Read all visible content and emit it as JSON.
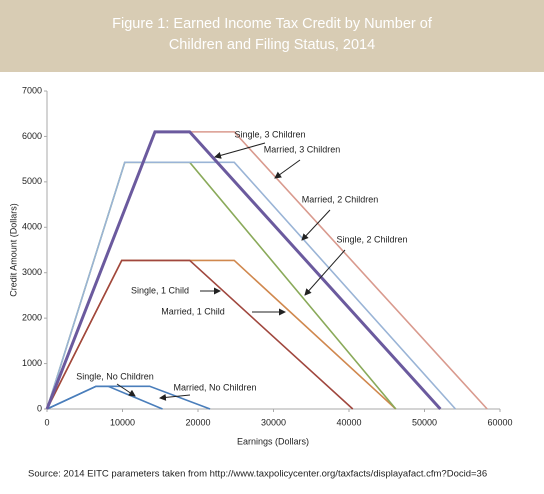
{
  "chart_data": {
    "type": "line",
    "title": "Figure 1: Earned Income Tax Credit by Number of Children and Filing Status, 2014",
    "xlabel": "Earnings (Dollars)",
    "ylabel": "Credit Amount (Dollars)",
    "source": "Source: 2014 EITC parameters taken from http://www.taxpolicycenter.org/taxfacts/displayafact.cfm?Docid=36",
    "xlim": [
      0,
      60000
    ],
    "xticks": [
      0,
      10000,
      20000,
      30000,
      40000,
      50000,
      60000
    ],
    "ylim": [
      0,
      7000
    ],
    "yticks": [
      0,
      1000,
      2000,
      3000,
      4000,
      5000,
      6000,
      7000
    ],
    "grid": false,
    "series": [
      {
        "name": "Single, 3 Children",
        "color": "#6b5a9e",
        "x": [
          0,
          14300,
          18900,
          52100
        ],
        "values": [
          0,
          6100,
          6100,
          0
        ]
      },
      {
        "name": "Married, 3 Children",
        "color": "#d99a8e",
        "x": [
          0,
          14300,
          24800,
          58300
        ],
        "values": [
          0,
          6100,
          6100,
          0
        ]
      },
      {
        "name": "Married, 2 Children",
        "color": "#9ab4d6",
        "x": [
          0,
          10300,
          24800,
          54100
        ],
        "values": [
          0,
          5430,
          5430,
          0
        ]
      },
      {
        "name": "Single, 2 Children",
        "color": "#8aaa5a",
        "x": [
          0,
          10300,
          18900,
          46200
        ],
        "values": [
          0,
          5430,
          5430,
          0
        ]
      },
      {
        "name": "Single, 1 Child",
        "color": "#a0473e",
        "x": [
          0,
          9900,
          18900,
          40500
        ],
        "values": [
          0,
          3270,
          3270,
          0
        ]
      },
      {
        "name": "Married, 1 Child",
        "color": "#d0884e",
        "x": [
          0,
          9900,
          24800,
          46200
        ],
        "values": [
          0,
          3270,
          3270,
          0
        ]
      },
      {
        "name": "Single, No Children",
        "color": "#4a7ebb",
        "x": [
          0,
          6500,
          8100,
          15300
        ],
        "values": [
          0,
          500,
          500,
          0
        ]
      },
      {
        "name": "Married, No Children",
        "color": "#4a7ebb",
        "x": [
          0,
          6500,
          13600,
          21600
        ],
        "values": [
          0,
          500,
          500,
          0
        ]
      }
    ]
  }
}
